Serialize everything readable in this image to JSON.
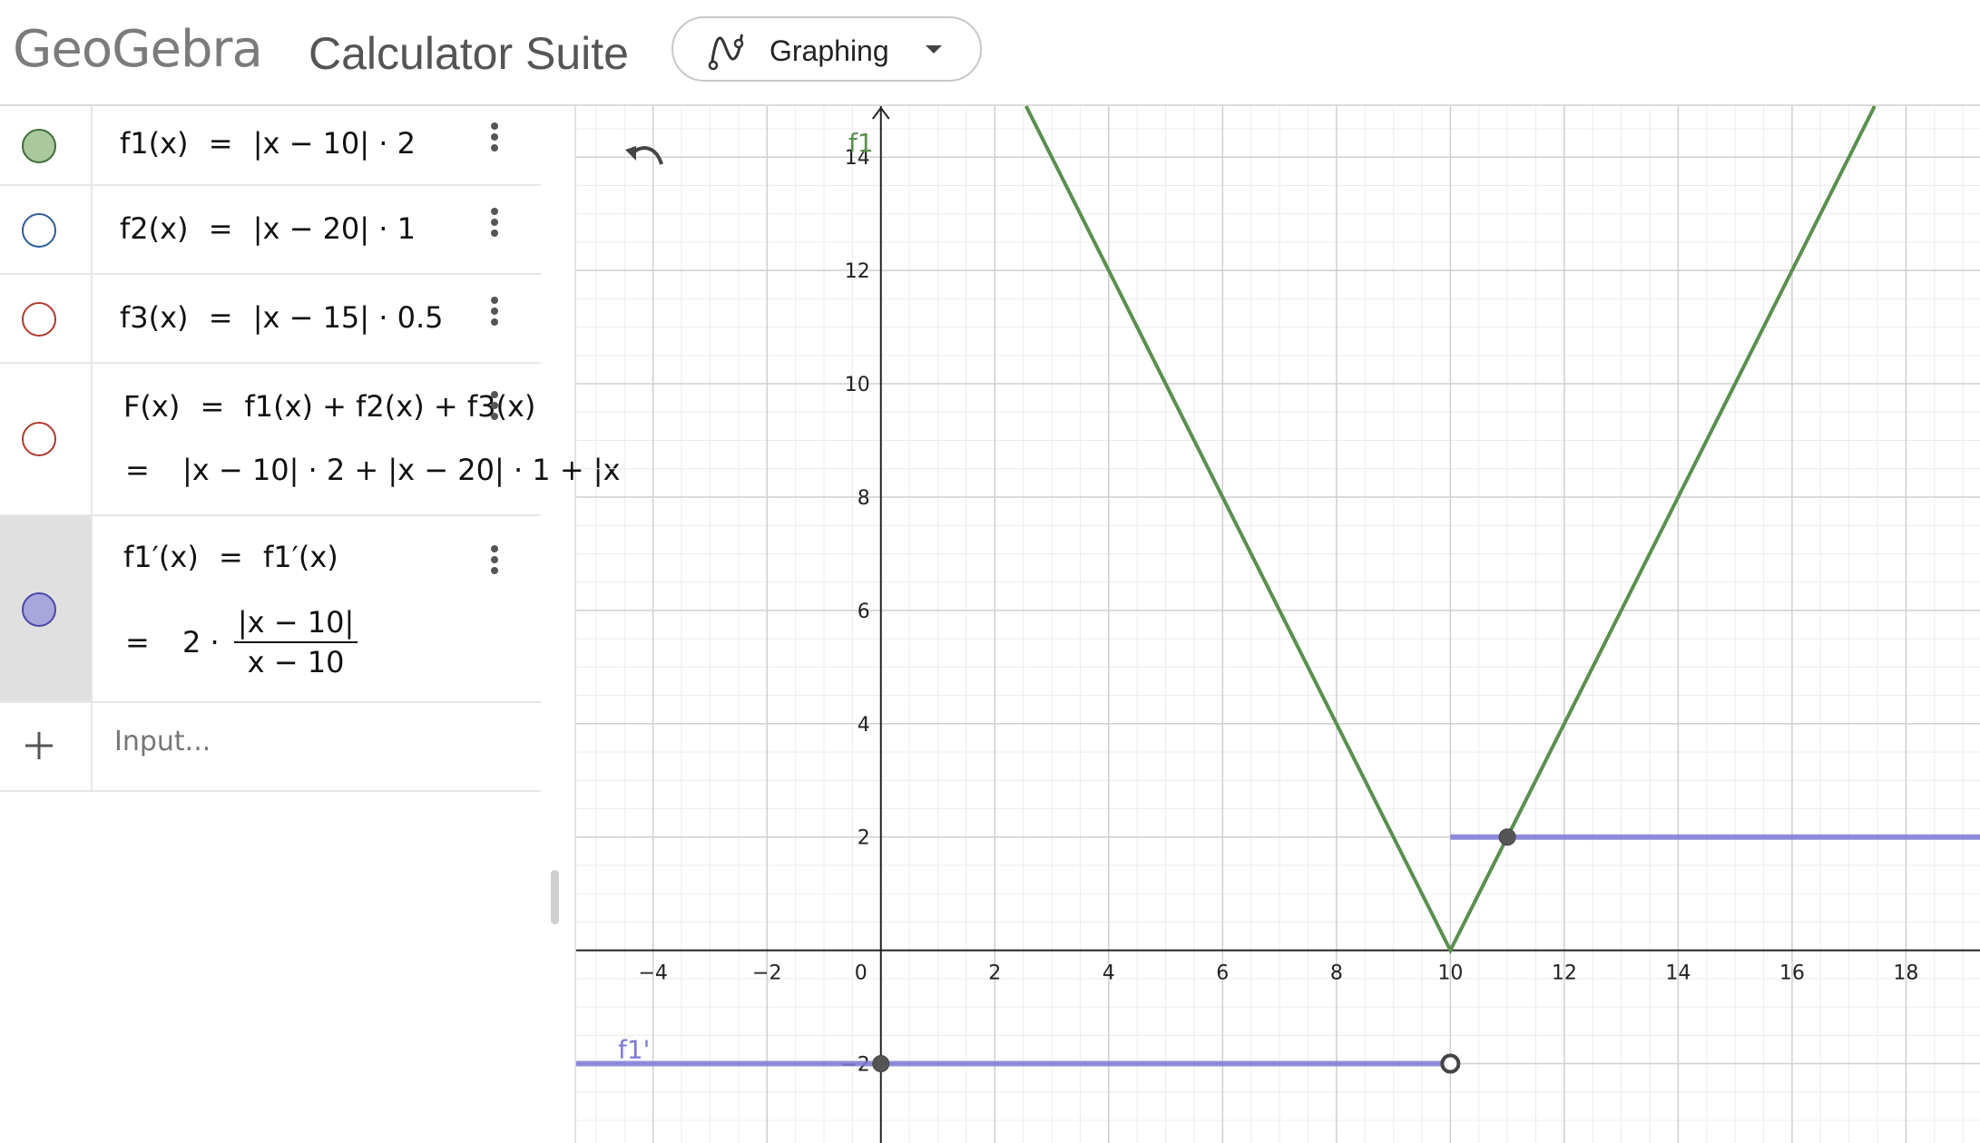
{
  "header": {
    "logo": "GeoGebra",
    "suite_title": "Calculator Suite",
    "app_switcher": {
      "label": "Graphing",
      "icon": "graphing-icon"
    }
  },
  "algebra": {
    "rows": [
      {
        "id": "f1",
        "lhs": "f1(x)",
        "rhs": "|x − 10| · 2",
        "marble_fill": "#a9c89e",
        "marble_stroke": "#3f6d38"
      },
      {
        "id": "f2",
        "lhs": "f2(x)",
        "rhs": "|x − 20| · 1",
        "marble_fill": "none",
        "marble_stroke": "#2d5c9a"
      },
      {
        "id": "f3",
        "lhs": "f3(x)",
        "rhs": "|x − 15| · 0.5",
        "marble_fill": "none",
        "marble_stroke": "#b03a2e"
      },
      {
        "id": "F",
        "lhs": "F(x)",
        "rhs": "f1(x) + f2(x) + f3(x)",
        "value": "|x − 10| · 2 + |x − 20| · 1 + |x",
        "marble_fill": "none",
        "marble_stroke": "#b03a2e"
      },
      {
        "id": "f1p",
        "lhs": "f1′(x)",
        "rhs": "f1′(x)",
        "value_coef": "2 ·",
        "value_num": "|x − 10|",
        "value_den": "x − 10",
        "marble_fill": "#a8a6dc",
        "marble_stroke": "#4a48a8"
      }
    ],
    "equals": "=",
    "input_placeholder": "Input..."
  },
  "graph": {
    "x_ticks": [
      -4,
      -2,
      0,
      2,
      4,
      6,
      8,
      10,
      12,
      14,
      16,
      18
    ],
    "y_ticks": [
      -2,
      2,
      4,
      6,
      8,
      10,
      12,
      14
    ],
    "x_range": [
      -5.35,
      19.3
    ],
    "y_range": [
      -3.4,
      14.9
    ],
    "curves": [
      {
        "name": "f1",
        "label": "f1",
        "color": "#5a8f4e",
        "points": [
          [
            2.55,
            14.9
          ],
          [
            10,
            0
          ],
          [
            17.45,
            14.9
          ]
        ]
      },
      {
        "name": "f1'",
        "label": "f1'",
        "color": "#7b79d6",
        "segments": [
          [
            [
              -5.35,
              -2
            ],
            [
              10,
              -2
            ]
          ],
          [
            [
              10,
              2
            ],
            [
              19.3,
              2
            ]
          ]
        ]
      }
    ],
    "points": [
      {
        "x": 0,
        "y": -2,
        "style": "filled"
      },
      {
        "x": 10,
        "y": -2,
        "style": "hollow"
      },
      {
        "x": 11,
        "y": 2,
        "style": "filled"
      }
    ],
    "colors": {
      "grid_major": "#cfcfcf",
      "grid_minor": "#ececec",
      "axis": "#222222"
    }
  }
}
